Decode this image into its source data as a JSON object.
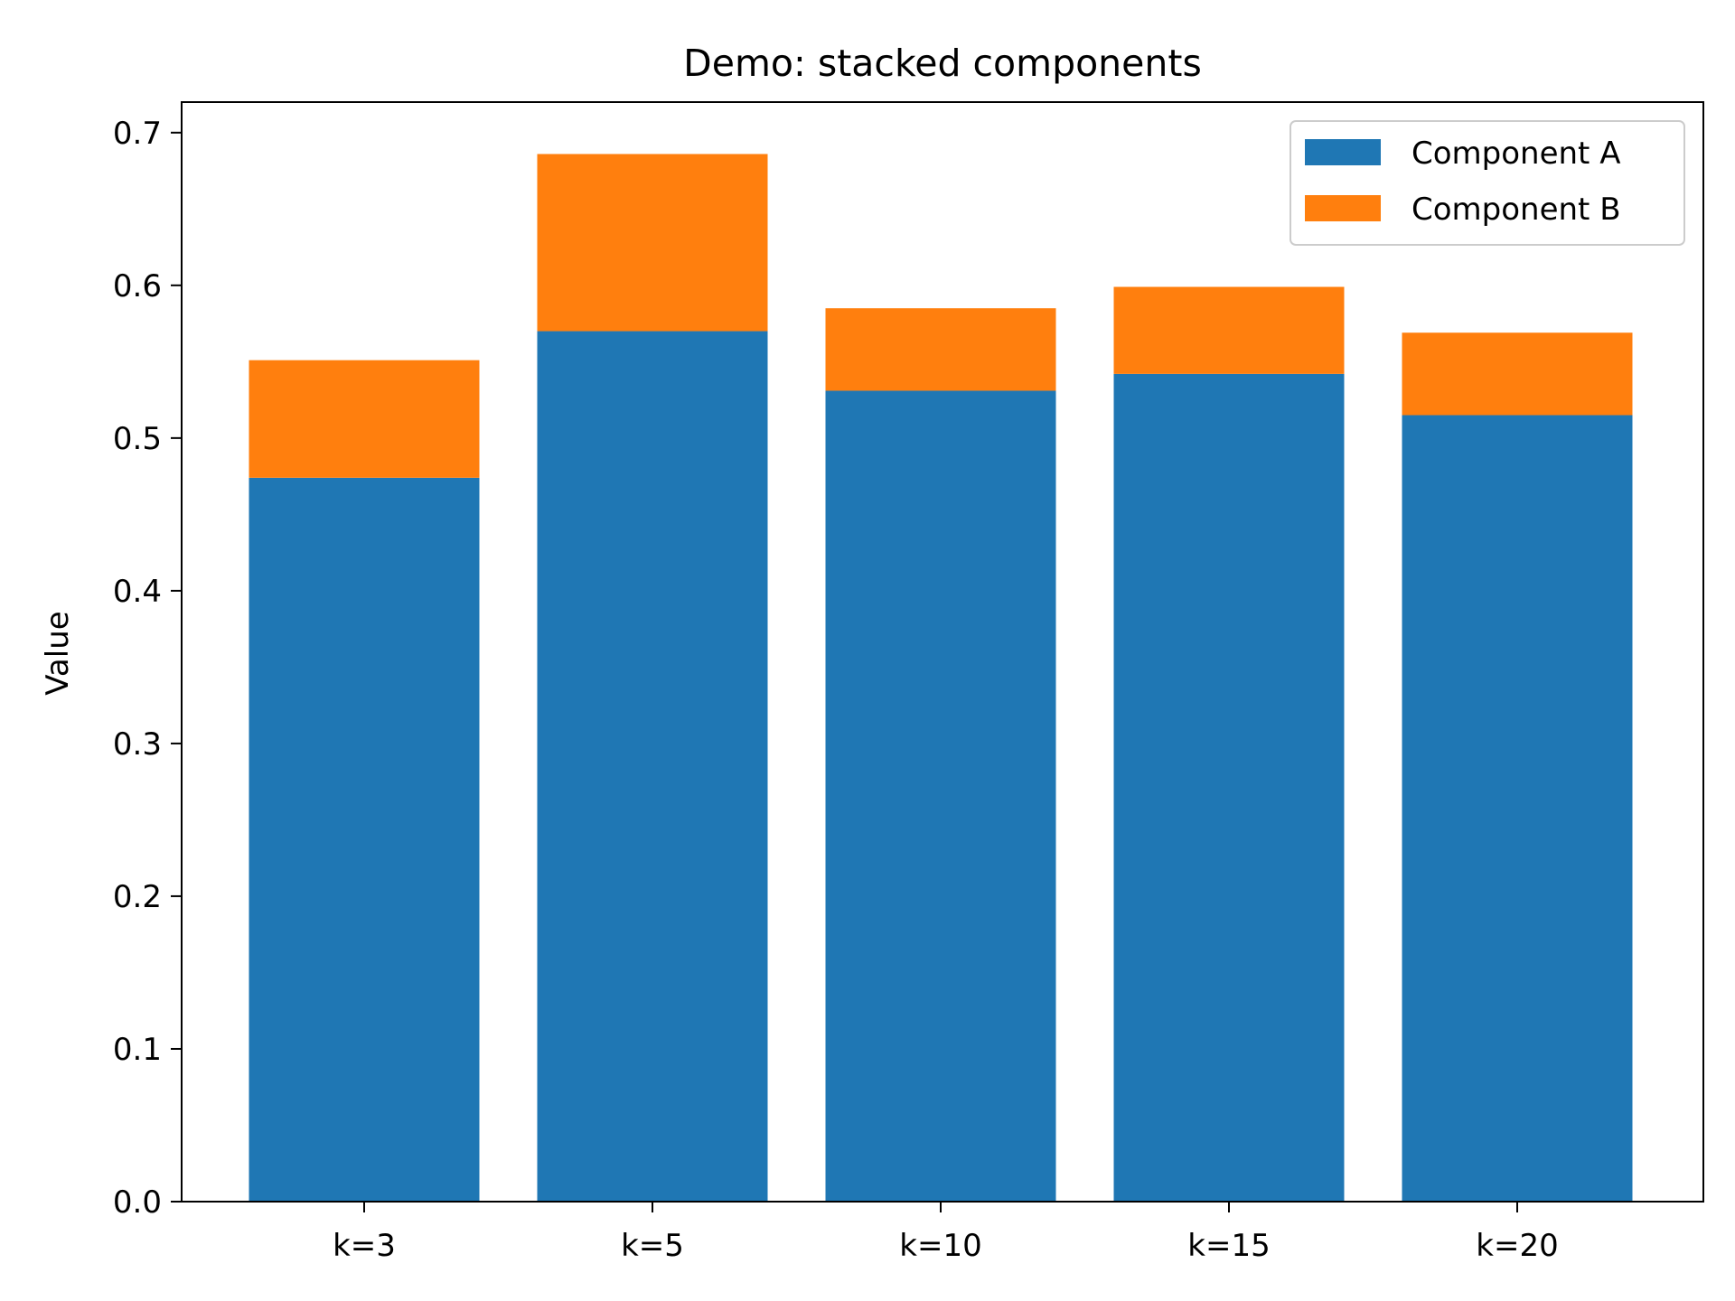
{
  "chart_data": {
    "type": "bar",
    "stacked": true,
    "title": "Demo: stacked components",
    "xlabel": "",
    "ylabel": "Value",
    "categories": [
      "k=3",
      "k=5",
      "k=10",
      "k=15",
      "k=20"
    ],
    "series": [
      {
        "name": "Component A",
        "color": "#1f77b4",
        "values": [
          0.474,
          0.57,
          0.531,
          0.542,
          0.515
        ]
      },
      {
        "name": "Component B",
        "color": "#ff7f0e",
        "values": [
          0.077,
          0.116,
          0.054,
          0.057,
          0.054
        ]
      }
    ],
    "ylim": [
      0,
      0.72
    ],
    "yticks": [
      "0.0",
      "0.1",
      "0.2",
      "0.3",
      "0.4",
      "0.5",
      "0.6",
      "0.7"
    ],
    "grid": false,
    "legend_position": "top-right"
  }
}
